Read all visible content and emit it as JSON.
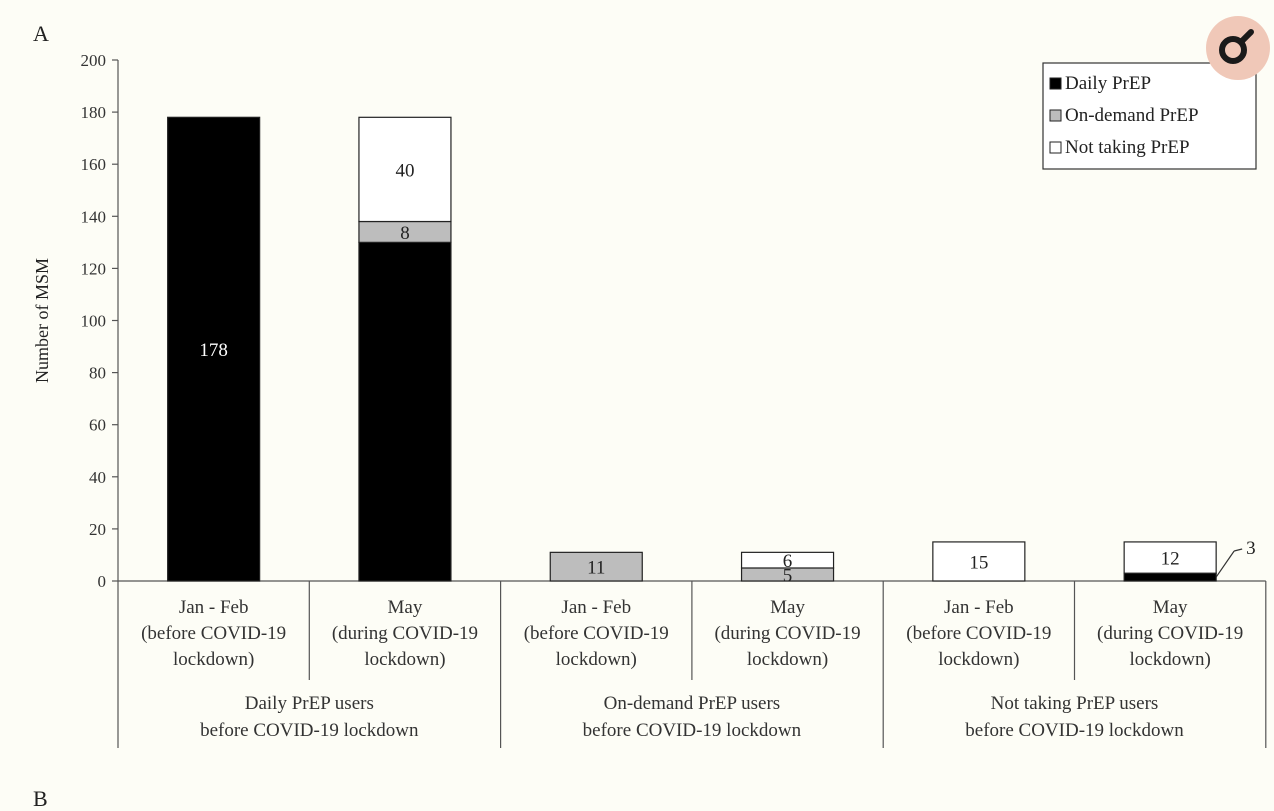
{
  "panel_labels": [
    "A",
    "B"
  ],
  "colors": {
    "Daily PrEP": "#000000",
    "On-demand PrEP": "#bdbdbd",
    "Not taking PrEP": "#ffffff",
    "badge": "#f0c8b8"
  },
  "badge_icon": "magnifier-icon",
  "chart_data": {
    "type": "bar",
    "stacked": true,
    "ylabel": "Number of MSM",
    "xlabel": "",
    "ylim": [
      0,
      200
    ],
    "yticks": [
      0,
      20,
      40,
      60,
      80,
      100,
      120,
      140,
      160,
      180,
      200
    ],
    "grid": false,
    "legend_position": "top-right",
    "categories": [
      [
        "Jan - Feb",
        "(before COVID-19",
        "lockdown)"
      ],
      [
        "May",
        "(during COVID-19",
        "lockdown)"
      ],
      [
        "Jan - Feb",
        "(before COVID-19",
        "lockdown)"
      ],
      [
        "May",
        "(during COVID-19",
        "lockdown)"
      ],
      [
        "Jan - Feb",
        "(before COVID-19",
        "lockdown)"
      ],
      [
        "May",
        "(during COVID-19",
        "lockdown)"
      ]
    ],
    "groups": [
      [
        "Daily PrEP users",
        "before COVID-19 lockdown"
      ],
      [
        "On-demand PrEP users",
        "before COVID-19 lockdown"
      ],
      [
        "Not taking PrEP users",
        "before COVID-19 lockdown"
      ]
    ],
    "series": [
      {
        "name": "Daily PrEP",
        "values": [
          178,
          130,
          0,
          0,
          0,
          3
        ]
      },
      {
        "name": "On-demand PrEP",
        "values": [
          0,
          8,
          11,
          5,
          0,
          0
        ]
      },
      {
        "name": "Not taking PrEP",
        "values": [
          0,
          40,
          0,
          6,
          15,
          12
        ]
      }
    ],
    "data_labels": [
      [
        "178",
        "",
        "",
        "",
        "",
        "3"
      ],
      [
        "",
        "8",
        "11",
        "5",
        "",
        ""
      ],
      [
        "",
        "40",
        "",
        "6",
        "15",
        "12"
      ]
    ]
  }
}
